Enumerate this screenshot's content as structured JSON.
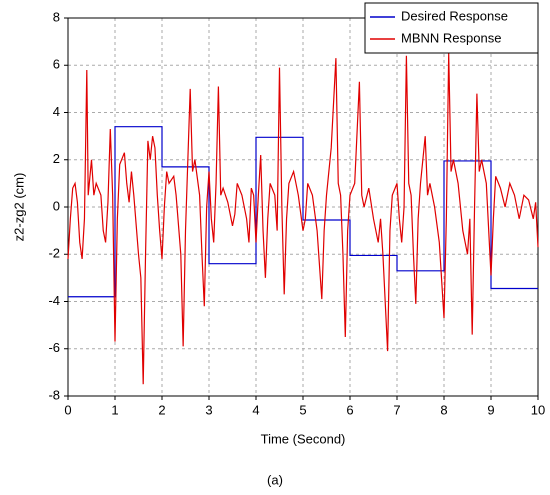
{
  "chart_data": {
    "type": "line",
    "xlabel": "Time (Second)",
    "ylabel": "z2-zg2 (cm)",
    "caption": "(a)",
    "xlim": [
      0,
      10
    ],
    "xticks": [
      0,
      1,
      2,
      3,
      4,
      5,
      6,
      7,
      8,
      9,
      10
    ],
    "ylim": [
      -8,
      8
    ],
    "yticks": [
      -8,
      -6,
      -4,
      -2,
      0,
      2,
      4,
      6,
      8
    ],
    "grid": true,
    "legend": "upper right",
    "series": [
      {
        "name": "Desired Response",
        "color": "#0000cc",
        "x": [
          0,
          1,
          1,
          2,
          2,
          3,
          3,
          4,
          4,
          5,
          5,
          6,
          6,
          7,
          7,
          8,
          8,
          9,
          9,
          10
        ],
        "values": [
          -3.8,
          -3.8,
          3.4,
          3.4,
          1.7,
          1.7,
          -2.4,
          -2.4,
          2.95,
          2.95,
          -0.55,
          -0.55,
          -2.05,
          -2.05,
          -2.7,
          -2.7,
          1.95,
          1.95,
          -3.45,
          -3.45
        ]
      },
      {
        "name": "MBNN Response",
        "color": "#e00000",
        "x": [
          0,
          0.05,
          0.1,
          0.15,
          0.2,
          0.25,
          0.3,
          0.35,
          0.4,
          0.43,
          0.5,
          0.55,
          0.6,
          0.7,
          0.75,
          0.8,
          0.85,
          0.9,
          0.95,
          1.0,
          1.05,
          1.1,
          1.2,
          1.25,
          1.3,
          1.35,
          1.4,
          1.5,
          1.55,
          1.6,
          1.65,
          1.7,
          1.75,
          1.8,
          1.85,
          1.9,
          1.95,
          2.0,
          2.05,
          2.1,
          2.15,
          2.25,
          2.3,
          2.4,
          2.45,
          2.5,
          2.55,
          2.6,
          2.65,
          2.7,
          2.8,
          2.85,
          2.9,
          2.95,
          3.0,
          3.05,
          3.1,
          3.15,
          3.2,
          3.25,
          3.3,
          3.4,
          3.5,
          3.55,
          3.6,
          3.7,
          3.8,
          3.85,
          3.9,
          3.95,
          4.0,
          4.05,
          4.1,
          4.15,
          4.2,
          4.25,
          4.3,
          4.4,
          4.45,
          4.5,
          4.55,
          4.6,
          4.65,
          4.7,
          4.8,
          4.9,
          5.0,
          5.05,
          5.1,
          5.2,
          5.3,
          5.4,
          5.45,
          5.5,
          5.6,
          5.7,
          5.75,
          5.8,
          5.85,
          5.9,
          5.95,
          6.0,
          6.1,
          6.2,
          6.25,
          6.3,
          6.4,
          6.5,
          6.6,
          6.65,
          6.7,
          6.8,
          6.85,
          6.9,
          7.0,
          7.05,
          7.1,
          7.15,
          7.2,
          7.25,
          7.3,
          7.35,
          7.4,
          7.45,
          7.5,
          7.6,
          7.65,
          7.7,
          7.8,
          7.9,
          8.0,
          8.05,
          8.1,
          8.15,
          8.2,
          8.3,
          8.4,
          8.5,
          8.55,
          8.6,
          8.65,
          8.7,
          8.75,
          8.8,
          8.9,
          9.0,
          9.05,
          9.1,
          9.2,
          9.3,
          9.4,
          9.5,
          9.6,
          9.7,
          9.8,
          9.9,
          9.95,
          10
        ],
        "values": [
          -2.2,
          -0.5,
          0.8,
          1.0,
          0.2,
          -1.5,
          -2.2,
          -0.5,
          5.8,
          0.5,
          2.0,
          0.5,
          1.0,
          0.5,
          -1.0,
          -1.5,
          0.2,
          3.3,
          0.5,
          -5.7,
          -0.5,
          1.8,
          2.3,
          1.0,
          0.2,
          1.5,
          0.5,
          -2.0,
          -3.0,
          -7.5,
          -2.0,
          2.8,
          2.0,
          3.0,
          2.5,
          0.5,
          -1.0,
          -2.2,
          0.0,
          1.5,
          1.0,
          1.3,
          0.5,
          -2.0,
          -5.9,
          -1.0,
          2.0,
          5.0,
          1.5,
          2.0,
          0.5,
          -2.0,
          -4.2,
          0.0,
          1.5,
          -0.5,
          -1.5,
          1.0,
          5.1,
          0.5,
          0.8,
          0.2,
          -0.8,
          -0.3,
          1.0,
          0.5,
          -0.5,
          -1.5,
          0.8,
          0.5,
          -1.5,
          0.5,
          2.2,
          -1.0,
          -3.0,
          -0.5,
          1.0,
          0.5,
          -1.0,
          5.9,
          0.0,
          -3.7,
          -0.5,
          1.0,
          1.5,
          0.5,
          -1.0,
          -0.5,
          1.0,
          0.5,
          -1.0,
          -3.9,
          -1.0,
          0.5,
          2.5,
          6.3,
          1.0,
          0.5,
          -2.0,
          -5.5,
          -1.0,
          0.5,
          1.0,
          5.3,
          0.5,
          0.0,
          0.8,
          -0.5,
          -1.5,
          -0.5,
          -2.0,
          -6.1,
          -1.0,
          0.5,
          1.0,
          -0.5,
          -1.5,
          0.0,
          6.4,
          1.0,
          0.5,
          -2.0,
          -4.1,
          -0.5,
          1.0,
          3.0,
          0.5,
          1.0,
          0.0,
          -1.5,
          -4.7,
          -0.5,
          6.5,
          1.5,
          2.0,
          1.0,
          -1.0,
          -2.0,
          -0.5,
          -5.4,
          0.0,
          4.8,
          1.5,
          2.0,
          1.0,
          -2.9,
          -0.5,
          1.3,
          0.8,
          0.0,
          1.0,
          0.5,
          -0.5,
          0.5,
          0.3,
          -0.5,
          0.2,
          -1.7
        ]
      }
    ]
  }
}
